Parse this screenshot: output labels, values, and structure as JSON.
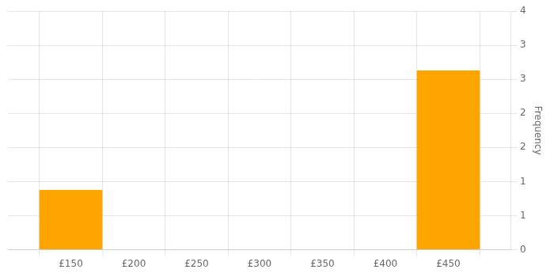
{
  "chart_data": {
    "type": "bar",
    "x": [
      150,
      450
    ],
    "values": [
      1,
      3
    ],
    "width": 50,
    "color": "#FFA500",
    "xlim": [
      100,
      500
    ],
    "xticks": [
      {
        "value": 150,
        "label": "£150"
      },
      {
        "value": 200,
        "label": "£200"
      },
      {
        "value": 250,
        "label": "£250"
      },
      {
        "value": 300,
        "label": "£300"
      },
      {
        "value": 350,
        "label": "£350"
      },
      {
        "value": 400,
        "label": "£400"
      },
      {
        "value": 450,
        "label": "£450"
      }
    ],
    "ylim": [
      0,
      4
    ],
    "yticks": [
      {
        "value": 0,
        "label": "0"
      },
      {
        "value": 0.5714285714285714,
        "label": "1"
      },
      {
        "value": 1.1428571428571428,
        "label": "1"
      },
      {
        "value": 1.7142857142857142,
        "label": "2"
      },
      {
        "value": 2.2857142857142856,
        "label": "2"
      },
      {
        "value": 2.857142857142857,
        "label": "3"
      },
      {
        "value": 3.4285714285714284,
        "label": "3"
      },
      {
        "value": 4,
        "label": "4"
      }
    ],
    "ylabel": "Frequency",
    "grid": true
  }
}
